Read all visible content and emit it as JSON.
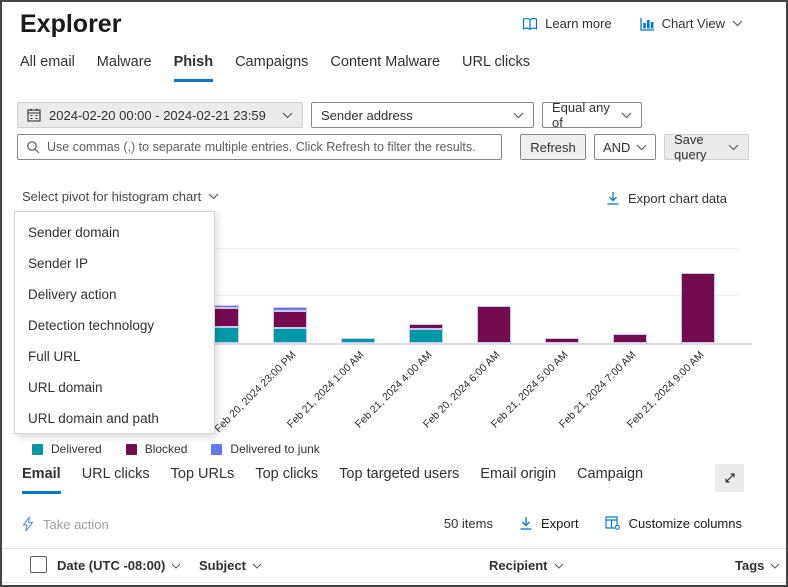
{
  "header": {
    "title": "Explorer",
    "learn_more_label": "Learn more",
    "chart_view_label": "Chart View"
  },
  "nav_tabs": {
    "items": [
      "All email",
      "Malware",
      "Phish",
      "Campaigns",
      "Content Malware",
      "URL clicks"
    ],
    "active": "Phish"
  },
  "filters": {
    "date_range": "2024-02-20 00:00 - 2024-02-21 23:59",
    "field": "Sender address",
    "operator": "Equal any of",
    "search_placeholder": "Use commas (,) to separate multiple entries. Click Refresh to filter the results.",
    "refresh_label": "Refresh",
    "boolean_operator": "AND",
    "save_query_label": "Save query"
  },
  "chart_section": {
    "pivot_label": "Select pivot for histogram chart",
    "export_label": "Export chart data",
    "pivot_menu_items": [
      "Sender domain",
      "Sender IP",
      "Delivery action",
      "Detection technology",
      "Full URL",
      "URL domain",
      "URL domain and path"
    ]
  },
  "chart_data": {
    "type": "bar",
    "stacked": true,
    "x": [
      "",
      "Feb 20, 2024 23:00 PM",
      "Feb 21, 2024 1:00 AM",
      "Feb 21, 2024 4:00 AM",
      "Feb 20, 2024 6:00 AM",
      "Feb 21, 2024 5:00 AM",
      "Feb 21, 2024 7:00 AM",
      "Feb 21, 2024 9:00 AM"
    ],
    "series": [
      {
        "name": "Delivered",
        "color": "#0099a8",
        "values": [
          17,
          16,
          5,
          15,
          0,
          0,
          0,
          0
        ]
      },
      {
        "name": "Blocked",
        "color": "#750b4f",
        "values": [
          20,
          18,
          0,
          5,
          40,
          5,
          10,
          75
        ]
      },
      {
        "name": "Delivered to junk",
        "color": "#6576f0",
        "values": [
          4,
          4,
          0,
          0,
          0,
          0,
          0,
          0
        ]
      }
    ],
    "ylim": [
      0,
      140
    ],
    "gridlines": [
      50,
      100
    ],
    "legend_position": "bottom"
  },
  "legend": {
    "items": [
      {
        "label": "Delivered",
        "color": "#0099a8"
      },
      {
        "label": "Blocked",
        "color": "#750b4f"
      },
      {
        "label": "Delivered to junk",
        "color": "#6576f0"
      }
    ]
  },
  "results": {
    "tabs": [
      "Email",
      "URL clicks",
      "Top URLs",
      "Top clicks",
      "Top targeted users",
      "Email origin",
      "Campaign"
    ],
    "active_tab": "Email",
    "take_action_label": "Take action",
    "items_count": "50 items",
    "export_label": "Export",
    "customize_columns_label": "Customize columns"
  },
  "table": {
    "columns": [
      "Date (UTC -08:00)",
      "Subject",
      "Recipient",
      "Tags"
    ]
  },
  "colors": {
    "accent": "#0078d4",
    "delivered": "#0099a8",
    "blocked": "#750b4f",
    "junk": "#6576f0"
  }
}
